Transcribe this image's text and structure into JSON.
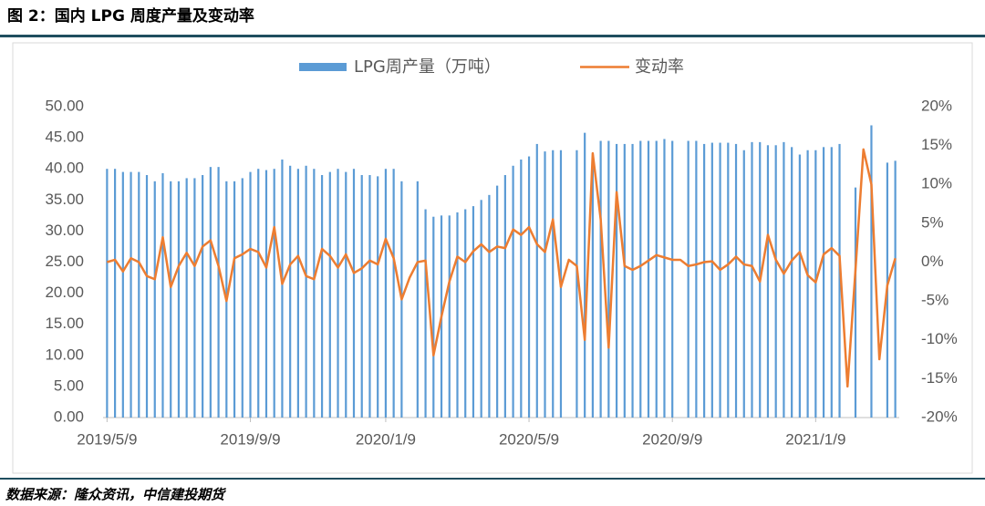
{
  "chart_data": {
    "type": "bar-line",
    "title": "图 2：国内 LPG 周度产量及变动率",
    "note": "数据来源：隆众资讯，中信建投期货",
    "categories": [
      "2019/5/9",
      null,
      null,
      null,
      null,
      null,
      null,
      null,
      null,
      null,
      null,
      null,
      null,
      null,
      null,
      null,
      null,
      null,
      "2019/9/9",
      null,
      null,
      null,
      null,
      null,
      null,
      null,
      null,
      null,
      null,
      null,
      null,
      null,
      null,
      null,
      null,
      "2020/1/9",
      null,
      null,
      null,
      null,
      null,
      null,
      null,
      null,
      null,
      null,
      null,
      null,
      null,
      null,
      null,
      null,
      null,
      "2020/5/9",
      null,
      null,
      null,
      null,
      null,
      null,
      null,
      null,
      null,
      null,
      null,
      null,
      null,
      null,
      null,
      null,
      null,
      "2020/9/9",
      null,
      null,
      null,
      null,
      null,
      null,
      null,
      null,
      null,
      null,
      null,
      null,
      null,
      null,
      null,
      null,
      null,
      "2021/1/9",
      null,
      null,
      null,
      null,
      null,
      null,
      null,
      null,
      null,
      null
    ],
    "series": [
      {
        "name": "LPG周产量（万吨）",
        "color": "#5b9bd5",
        "type": "bar",
        "values": [
          40,
          40,
          39.5,
          39.5,
          39.5,
          39,
          38,
          39.3,
          38,
          38,
          38.5,
          38.5,
          39,
          40.3,
          40.3,
          38,
          38,
          38.5,
          39.5,
          40,
          39.8,
          40,
          41.5,
          40.5,
          40,
          40.5,
          40,
          39,
          39.5,
          40,
          39.5,
          40,
          39,
          39,
          38.8,
          40,
          40,
          38,
          null,
          38,
          33.5,
          32.3,
          32.5,
          32.5,
          33,
          33.5,
          34,
          35,
          35.8,
          37.3,
          39,
          40.5,
          41.5,
          42,
          44,
          42.8,
          43,
          43,
          null,
          43,
          45.8,
          41,
          44.5,
          44.5,
          44,
          44,
          44,
          44.5,
          44.5,
          44.5,
          44.8,
          44.5,
          null,
          44.5,
          44.5,
          44,
          44.2,
          44.2,
          44.2,
          44,
          43,
          44.3,
          44.3,
          43.8,
          43.8,
          44.3,
          43.5,
          42.3,
          43,
          43,
          43.5,
          43.5,
          44,
          null,
          37,
          null,
          47,
          null,
          41,
          41.3
        ]
      },
      {
        "name": "变动率",
        "color": "#ed7d31",
        "type": "line",
        "axis": "y2",
        "values": [
          0,
          0.3,
          -1.2,
          0.5,
          0,
          -1.8,
          -2.2,
          3.2,
          -3.2,
          -0.5,
          1.2,
          -0.5,
          2,
          2.8,
          -0.5,
          -5,
          0.5,
          1,
          1.7,
          1.3,
          -0.7,
          4.5,
          -2.8,
          -0.3,
          0.8,
          -1.8,
          -2.2,
          1.7,
          0.8,
          -0.7,
          1,
          -1.4,
          -0.8,
          0.2,
          -0.3,
          3,
          0.5,
          -4.8,
          -2,
          0,
          0.2,
          -12,
          -7,
          -2.5,
          0.7,
          0,
          1.4,
          2.3,
          1.3,
          2,
          1.8,
          4.2,
          3.5,
          4.5,
          2.3,
          1.3,
          5.5,
          -3.2,
          0.3,
          -0.5,
          -10,
          14,
          5.5,
          -11,
          9,
          -0.5,
          -1,
          -0.5,
          0.2,
          0.9,
          0.6,
          0.3,
          0.3,
          -0.5,
          -0.3,
          0,
          0.1,
          -1,
          -0.3,
          0.7,
          -0.3,
          -0.5,
          -2.5,
          3.5,
          0.3,
          -1.5,
          0.2,
          1.3,
          -1.7,
          -2.6,
          1,
          1.8,
          0.8,
          -16,
          -1,
          14.5,
          10,
          -12.5,
          -3,
          0.5
        ]
      }
    ],
    "ylim": [
      0,
      50
    ],
    "yticks": [
      {
        "value": 0,
        "label": "0.00"
      },
      {
        "value": 5,
        "label": "5.00"
      },
      {
        "value": 10,
        "label": "10.00"
      },
      {
        "value": 15,
        "label": "15.00"
      },
      {
        "value": 20,
        "label": "20.00"
      },
      {
        "value": 25,
        "label": "25.00"
      },
      {
        "value": 30,
        "label": "30.00"
      },
      {
        "value": 35,
        "label": "35.00"
      },
      {
        "value": 40,
        "label": "40.00"
      },
      {
        "value": 45,
        "label": "45.00"
      },
      {
        "value": 50,
        "label": "50.00"
      }
    ],
    "y2lim": [
      -20,
      20
    ],
    "y2ticks": [
      {
        "value": -20,
        "label": "-20%"
      },
      {
        "value": -15,
        "label": "-15%"
      },
      {
        "value": -10,
        "label": "-10%"
      },
      {
        "value": -5,
        "label": "-5%"
      },
      {
        "value": 0,
        "label": "0%"
      },
      {
        "value": 5,
        "label": "5%"
      },
      {
        "value": 10,
        "label": "10%"
      },
      {
        "value": 15,
        "label": "15%"
      },
      {
        "value": 20,
        "label": "20%"
      }
    ]
  }
}
